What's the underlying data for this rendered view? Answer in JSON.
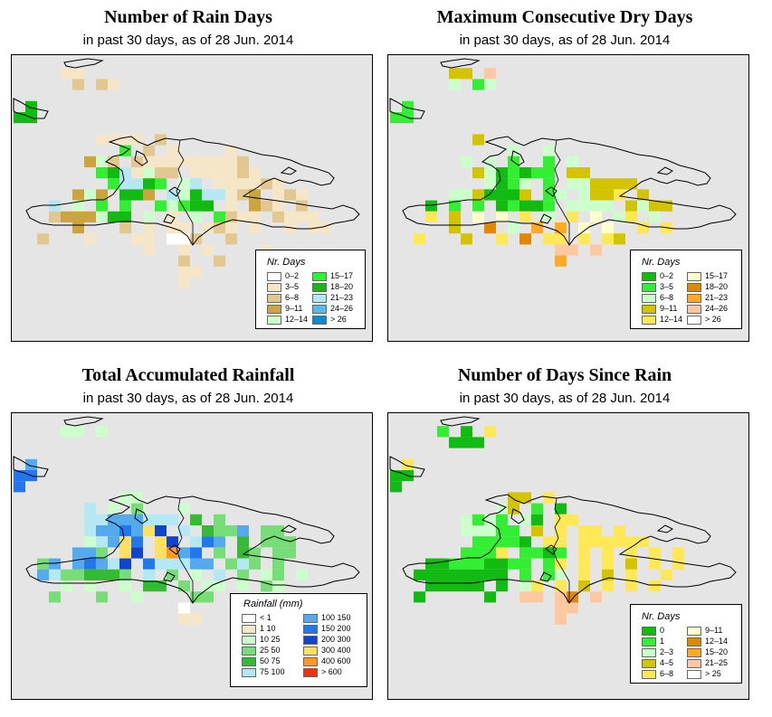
{
  "panels": [
    {
      "id": "rain-days",
      "title": "Number of Rain Days",
      "subtitle": "in past 30 days, as of  28 Jun. 2014",
      "legend_title": "Nr. Days",
      "legend": [
        {
          "label": "0–2",
          "color": "#ffffff"
        },
        {
          "label": "3–5",
          "color": "#f5e6c8"
        },
        {
          "label": "6–8",
          "color": "#e2c890"
        },
        {
          "label": "9–11",
          "color": "#cca43c"
        },
        {
          "label": "12–14",
          "color": "#ccffcc"
        },
        {
          "label": "15–17",
          "color": "#33ee33"
        },
        {
          "label": "18–20",
          "color": "#11bb11"
        },
        {
          "label": "21–23",
          "color": "#b4e8f5"
        },
        {
          "label": "24–26",
          "color": "#55bbee"
        },
        {
          "label": "> 26",
          "color": "#1188cc"
        }
      ]
    },
    {
      "id": "dry-days",
      "title": "Maximum Consecutive Dry Days",
      "subtitle": "in past 30 days, as of  28 Jun. 2014",
      "legend_title": "Nr. Days",
      "legend": [
        {
          "label": "0–2",
          "color": "#11bb11"
        },
        {
          "label": "3–5",
          "color": "#33ee33"
        },
        {
          "label": "6–8",
          "color": "#ccffcc"
        },
        {
          "label": "9–11",
          "color": "#d4c400"
        },
        {
          "label": "12–14",
          "color": "#ffe855"
        },
        {
          "label": "15–17",
          "color": "#ffffcc"
        },
        {
          "label": "18–20",
          "color": "#e08800"
        },
        {
          "label": "21–23",
          "color": "#ffaa22"
        },
        {
          "label": "24–26",
          "color": "#ffc8a0"
        },
        {
          "label": "> 26",
          "color": "#ffffff"
        }
      ]
    },
    {
      "id": "rainfall",
      "title": "Total Accumulated Rainfall",
      "subtitle": "in past 30 days, as of  28 Jun. 2014",
      "legend_title": "Rainfall (mm)",
      "legend": [
        {
          "label": "< 1",
          "color": "#ffffff"
        },
        {
          "label": "1   10",
          "color": "#f5e6c8"
        },
        {
          "label": "10   25",
          "color": "#ccffcc"
        },
        {
          "label": "25   50",
          "color": "#77dd77"
        },
        {
          "label": "50   75",
          "color": "#33bb33"
        },
        {
          "label": "75   100",
          "color": "#b4e8f5"
        },
        {
          "label": "100   150",
          "color": "#55aaee"
        },
        {
          "label": "150   200",
          "color": "#2277ee"
        },
        {
          "label": "200   300",
          "color": "#1144cc"
        },
        {
          "label": "300   400",
          "color": "#ffe060"
        },
        {
          "label": "400   600",
          "color": "#ff9922"
        },
        {
          "label": "> 600",
          "color": "#ee3311"
        }
      ]
    },
    {
      "id": "since-rain",
      "title": "Number of Days Since Rain",
      "subtitle": "in past 30 days, as of  28 Jun. 2014",
      "legend_title": "Nr. Days",
      "legend": [
        {
          "label": "0",
          "color": "#11bb11"
        },
        {
          "label": "1",
          "color": "#33ee33"
        },
        {
          "label": "2–3",
          "color": "#ccffcc"
        },
        {
          "label": "4–5",
          "color": "#d4c400"
        },
        {
          "label": "6–8",
          "color": "#ffe855"
        },
        {
          "label": "9–11",
          "color": "#ffffcc"
        },
        {
          "label": "12–14",
          "color": "#e08800"
        },
        {
          "label": "15–20",
          "color": "#ffaa22"
        },
        {
          "label": "21–25",
          "color": "#ffc8a0"
        },
        {
          "label": "> 25",
          "color": "#ffffff"
        }
      ]
    }
  ]
}
